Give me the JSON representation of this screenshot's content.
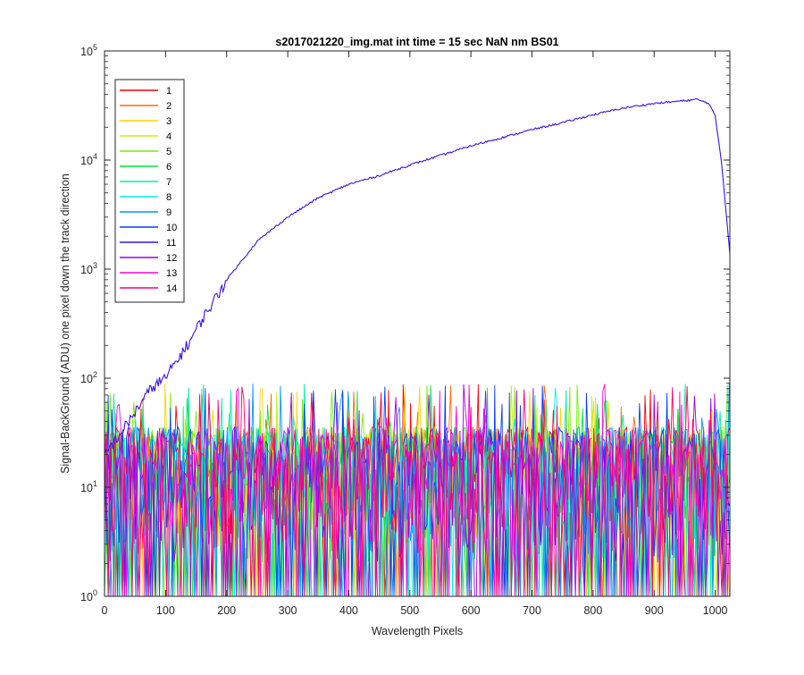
{
  "chart_data": {
    "type": "line",
    "title": "s2017021220_img.mat int time = 15 sec  NaN nm BS01",
    "xlabel": "Wavelength Pixels",
    "ylabel": "Signal-BackGround (ADU) one pixel down the track direction",
    "xlim": [
      0,
      1024
    ],
    "ylim": [
      1,
      100000
    ],
    "yscale": "log",
    "grid": false,
    "legend_position": "top-left",
    "x_ticks": [
      0,
      100,
      200,
      300,
      400,
      500,
      600,
      700,
      800,
      900,
      1000
    ],
    "y_ticks": [
      {
        "base": "10",
        "exp": "0",
        "value": 1
      },
      {
        "base": "10",
        "exp": "1",
        "value": 10
      },
      {
        "base": "10",
        "exp": "2",
        "value": 100
      },
      {
        "base": "10",
        "exp": "3",
        "value": 1000
      },
      {
        "base": "10",
        "exp": "4",
        "value": 10000
      },
      {
        "base": "10",
        "exp": "5",
        "value": 100000
      }
    ],
    "series": [
      {
        "name": "1",
        "color": "#ff0000"
      },
      {
        "name": "2",
        "color": "#ff6a00"
      },
      {
        "name": "3",
        "color": "#ffd400"
      },
      {
        "name": "4",
        "color": "#c3f000"
      },
      {
        "name": "5",
        "color": "#77ee00"
      },
      {
        "name": "6",
        "color": "#00e83c"
      },
      {
        "name": "7",
        "color": "#00f0a0"
      },
      {
        "name": "8",
        "color": "#00eeee"
      },
      {
        "name": "9",
        "color": "#0099ff"
      },
      {
        "name": "10",
        "color": "#0040ff"
      },
      {
        "name": "11",
        "color": "#3c10e8",
        "signal": {
          "x": [
            0,
            20,
            40,
            60,
            80,
            100,
            120,
            140,
            160,
            180,
            200,
            250,
            300,
            350,
            400,
            450,
            500,
            550,
            600,
            650,
            700,
            750,
            800,
            850,
            900,
            950,
            970,
            990,
            1000,
            1010,
            1024
          ],
          "y": [
            20,
            28,
            40,
            60,
            85,
            100,
            150,
            220,
            350,
            520,
            800,
            1800,
            3000,
            4500,
            6000,
            7200,
            9000,
            11000,
            13500,
            16000,
            19000,
            22000,
            26000,
            30000,
            33000,
            35000,
            36000,
            33000,
            25000,
            10000,
            1400
          ]
        }
      },
      {
        "name": "12",
        "color": "#9b00ee"
      },
      {
        "name": "13",
        "color": "#ff00dd"
      },
      {
        "name": "14",
        "color": "#ff0066"
      }
    ],
    "noise_floor_range": [
      1,
      90
    ]
  }
}
